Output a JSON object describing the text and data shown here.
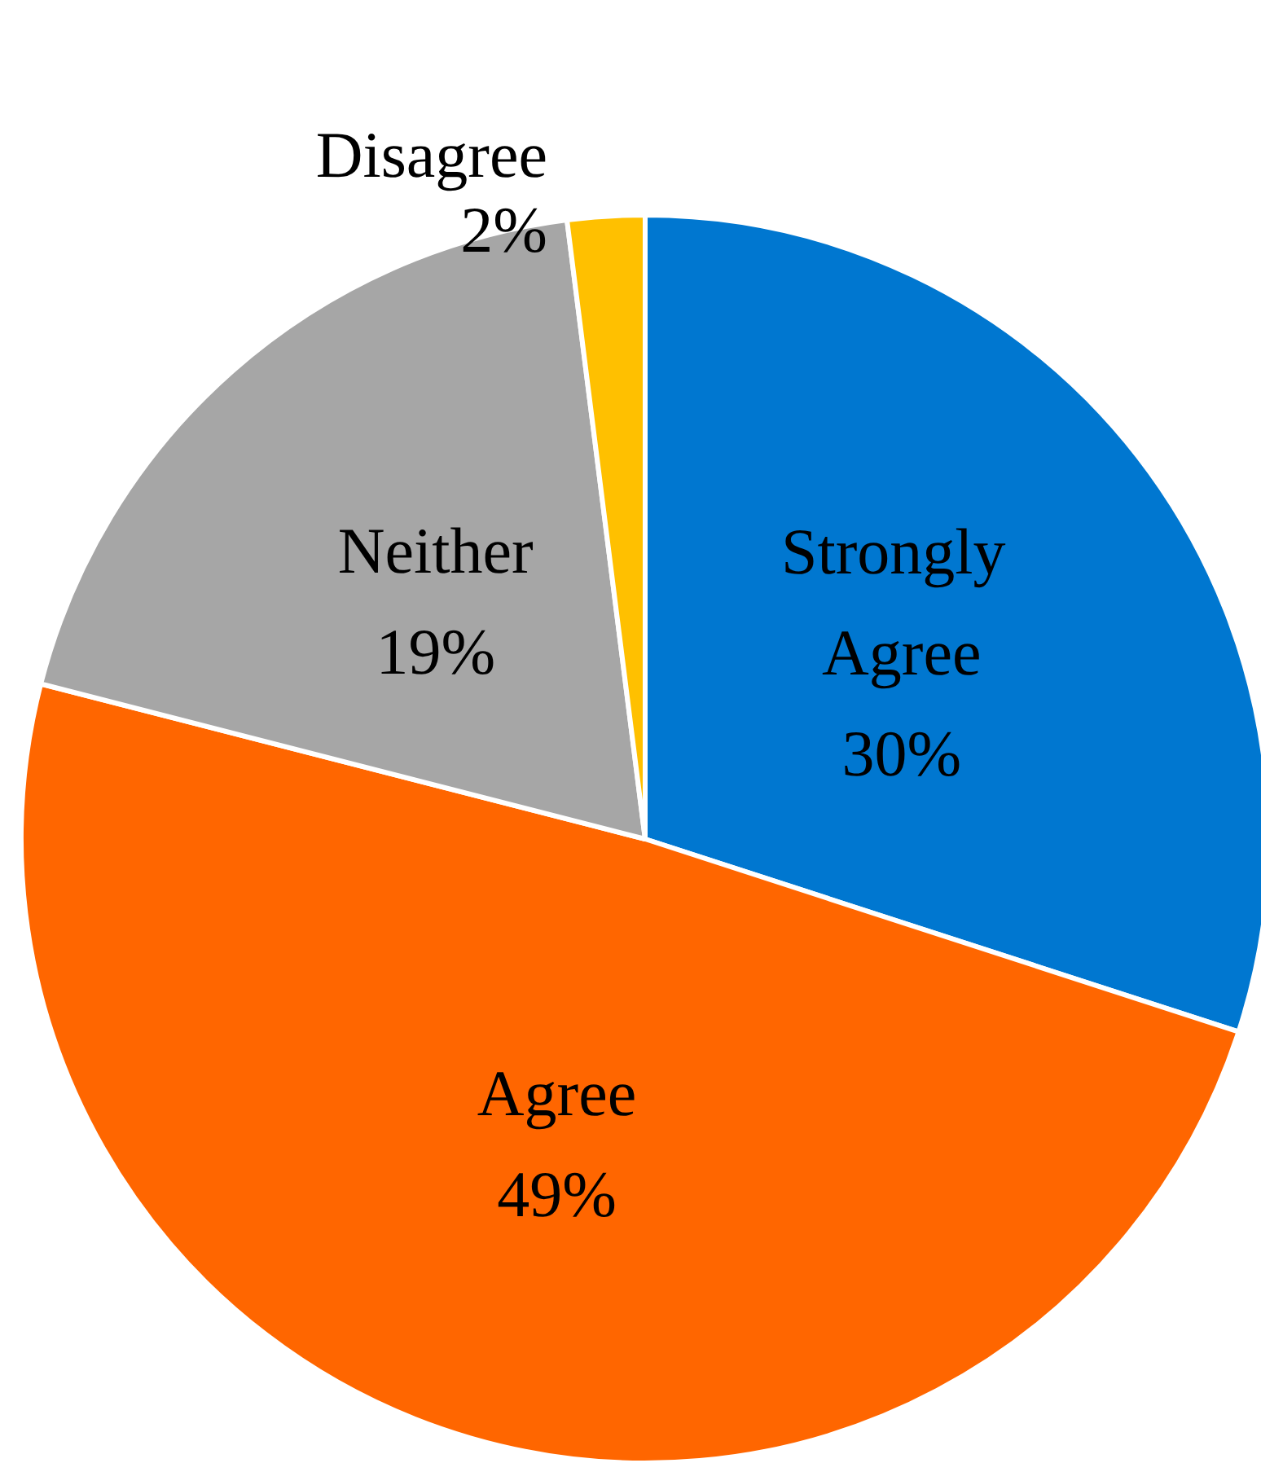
{
  "chart_data": {
    "type": "pie",
    "categories": [
      "Strongly Agree",
      "Agree",
      "Neither",
      "Disagree"
    ],
    "values": [
      30,
      49,
      19,
      2
    ],
    "value_labels": [
      "30%",
      "49%",
      "19%",
      "2%"
    ],
    "colors": [
      "#0077d0",
      "#ff6600",
      "#a6a6a6",
      "#ffc000"
    ],
    "legend": false
  }
}
